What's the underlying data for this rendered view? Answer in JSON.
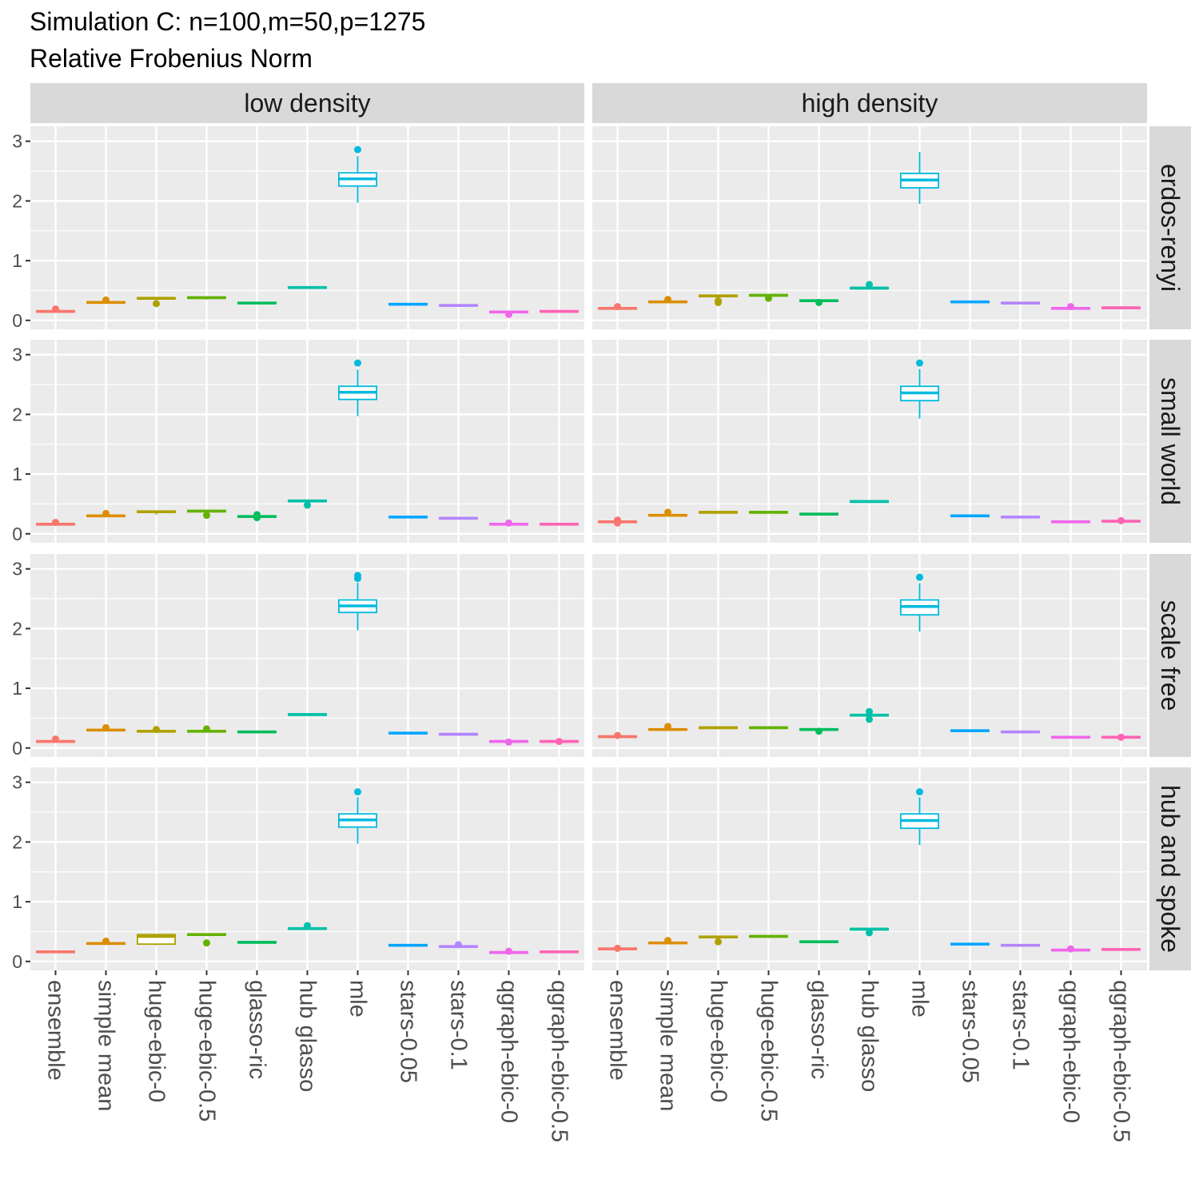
{
  "title": "Simulation C: n=100,m=50,p=1275",
  "subtitle": "Relative Frobenius Norm",
  "chart_data": {
    "type": "boxplot",
    "title": "Simulation C: n=100,m=50,p=1275",
    "subtitle": "Relative Frobenius Norm",
    "xlabel": "",
    "ylabel": "",
    "ylim": [
      -0.15,
      3.25
    ],
    "y_ticks": [
      "0",
      "1",
      "2",
      "3"
    ],
    "grid": true,
    "legend": "none",
    "categories": [
      "ensemble",
      "simple mean",
      "huge-ebic-0",
      "huge-ebic-0.5",
      "glasso-ric",
      "hub glasso",
      "mle",
      "stars-0.05",
      "stars-0.1",
      "qgraph-ebic-0",
      "qgraph-ebic-0.5"
    ],
    "colors": [
      "#F8766D",
      "#D89000",
      "#A3A500",
      "#39B600",
      "#00BF7D",
      "#00BFC4",
      "#00B0F6",
      "#9590FF",
      "#E76BF3",
      "#FF62BC",
      "#FF62BC"
    ],
    "category_colors": [
      "#F8766D",
      "#DB8E00",
      "#AEA200",
      "#64B200",
      "#00BD5C",
      "#00C1A7",
      "#00BADE",
      "#00A6FF",
      "#B385FF",
      "#EF67EB",
      "#FF63B6"
    ],
    "facet_cols": [
      "low density",
      "high density"
    ],
    "facet_rows": [
      "erdos-renyi",
      "small world",
      "scale free",
      "hub and spoke"
    ],
    "panels": [
      {
        "row": "erdos-renyi",
        "col": "low density",
        "boxes": [
          {
            "q1": 0.14,
            "med": 0.15,
            "q3": 0.16,
            "lo": 0.13,
            "hi": 0.17,
            "out": [
              0.19
            ]
          },
          {
            "q1": 0.29,
            "med": 0.3,
            "q3": 0.31,
            "lo": 0.28,
            "hi": 0.32,
            "out": [
              0.34
            ]
          },
          {
            "q1": 0.36,
            "med": 0.37,
            "q3": 0.38,
            "lo": 0.34,
            "hi": 0.39,
            "out": [
              0.28
            ]
          },
          {
            "q1": 0.37,
            "med": 0.38,
            "q3": 0.39,
            "lo": 0.35,
            "hi": 0.4,
            "out": []
          },
          {
            "q1": 0.28,
            "med": 0.29,
            "q3": 0.3,
            "lo": 0.27,
            "hi": 0.31,
            "out": []
          },
          {
            "q1": 0.54,
            "med": 0.55,
            "q3": 0.56,
            "lo": 0.53,
            "hi": 0.57,
            "out": []
          },
          {
            "q1": 2.25,
            "med": 2.37,
            "q3": 2.47,
            "lo": 1.97,
            "hi": 2.75,
            "out": [
              2.86
            ]
          },
          {
            "q1": 0.26,
            "med": 0.27,
            "q3": 0.28,
            "lo": 0.25,
            "hi": 0.29,
            "out": []
          },
          {
            "q1": 0.24,
            "med": 0.25,
            "q3": 0.26,
            "lo": 0.23,
            "hi": 0.27,
            "out": []
          },
          {
            "q1": 0.13,
            "med": 0.14,
            "q3": 0.15,
            "lo": 0.12,
            "hi": 0.16,
            "out": [
              0.1
            ]
          },
          {
            "q1": 0.14,
            "med": 0.15,
            "q3": 0.16,
            "lo": 0.13,
            "hi": 0.17,
            "out": []
          }
        ]
      },
      {
        "row": "erdos-renyi",
        "col": "high density",
        "boxes": [
          {
            "q1": 0.19,
            "med": 0.2,
            "q3": 0.21,
            "lo": 0.18,
            "hi": 0.22,
            "out": [
              0.23
            ]
          },
          {
            "q1": 0.3,
            "med": 0.31,
            "q3": 0.32,
            "lo": 0.29,
            "hi": 0.33,
            "out": [
              0.35
            ]
          },
          {
            "q1": 0.4,
            "med": 0.41,
            "q3": 0.42,
            "lo": 0.38,
            "hi": 0.43,
            "out": [
              0.33,
              0.3
            ]
          },
          {
            "q1": 0.41,
            "med": 0.42,
            "q3": 0.43,
            "lo": 0.39,
            "hi": 0.44,
            "out": [
              0.37
            ]
          },
          {
            "q1": 0.32,
            "med": 0.33,
            "q3": 0.34,
            "lo": 0.31,
            "hi": 0.35,
            "out": [
              0.3
            ]
          },
          {
            "q1": 0.53,
            "med": 0.54,
            "q3": 0.55,
            "lo": 0.52,
            "hi": 0.56,
            "out": [
              0.6
            ]
          },
          {
            "q1": 2.22,
            "med": 2.35,
            "q3": 2.46,
            "lo": 1.95,
            "hi": 2.82,
            "out": []
          },
          {
            "q1": 0.3,
            "med": 0.31,
            "q3": 0.32,
            "lo": 0.29,
            "hi": 0.33,
            "out": []
          },
          {
            "q1": 0.28,
            "med": 0.29,
            "q3": 0.3,
            "lo": 0.27,
            "hi": 0.31,
            "out": []
          },
          {
            "q1": 0.19,
            "med": 0.2,
            "q3": 0.21,
            "lo": 0.18,
            "hi": 0.22,
            "out": [
              0.23
            ]
          },
          {
            "q1": 0.2,
            "med": 0.21,
            "q3": 0.22,
            "lo": 0.19,
            "hi": 0.23,
            "out": []
          }
        ]
      },
      {
        "row": "small world",
        "col": "low density",
        "boxes": [
          {
            "q1": 0.15,
            "med": 0.16,
            "q3": 0.17,
            "lo": 0.14,
            "hi": 0.18,
            "out": [
              0.19
            ]
          },
          {
            "q1": 0.29,
            "med": 0.3,
            "q3": 0.31,
            "lo": 0.28,
            "hi": 0.32,
            "out": [
              0.34
            ]
          },
          {
            "q1": 0.36,
            "med": 0.37,
            "q3": 0.38,
            "lo": 0.32,
            "hi": 0.39,
            "out": []
          },
          {
            "q1": 0.37,
            "med": 0.38,
            "q3": 0.39,
            "lo": 0.35,
            "hi": 0.4,
            "out": [
              0.31
            ]
          },
          {
            "q1": 0.28,
            "med": 0.29,
            "q3": 0.3,
            "lo": 0.27,
            "hi": 0.31,
            "out": [
              0.32,
              0.27
            ]
          },
          {
            "q1": 0.54,
            "med": 0.55,
            "q3": 0.56,
            "lo": 0.53,
            "hi": 0.57,
            "out": [
              0.48
            ]
          },
          {
            "q1": 2.25,
            "med": 2.37,
            "q3": 2.47,
            "lo": 1.97,
            "hi": 2.75,
            "out": [
              2.86
            ]
          },
          {
            "q1": 0.27,
            "med": 0.28,
            "q3": 0.29,
            "lo": 0.26,
            "hi": 0.3,
            "out": []
          },
          {
            "q1": 0.25,
            "med": 0.26,
            "q3": 0.27,
            "lo": 0.24,
            "hi": 0.28,
            "out": []
          },
          {
            "q1": 0.15,
            "med": 0.16,
            "q3": 0.17,
            "lo": 0.14,
            "hi": 0.18,
            "out": [
              0.18
            ]
          },
          {
            "q1": 0.15,
            "med": 0.16,
            "q3": 0.17,
            "lo": 0.14,
            "hi": 0.18,
            "out": []
          }
        ]
      },
      {
        "row": "small world",
        "col": "high density",
        "boxes": [
          {
            "q1": 0.19,
            "med": 0.2,
            "q3": 0.21,
            "lo": 0.17,
            "hi": 0.22,
            "out": [
              0.23,
              0.18
            ]
          },
          {
            "q1": 0.3,
            "med": 0.31,
            "q3": 0.32,
            "lo": 0.29,
            "hi": 0.33,
            "out": [
              0.36
            ]
          },
          {
            "q1": 0.35,
            "med": 0.36,
            "q3": 0.37,
            "lo": 0.34,
            "hi": 0.38,
            "out": []
          },
          {
            "q1": 0.35,
            "med": 0.36,
            "q3": 0.37,
            "lo": 0.34,
            "hi": 0.38,
            "out": []
          },
          {
            "q1": 0.32,
            "med": 0.33,
            "q3": 0.34,
            "lo": 0.31,
            "hi": 0.35,
            "out": []
          },
          {
            "q1": 0.53,
            "med": 0.54,
            "q3": 0.55,
            "lo": 0.52,
            "hi": 0.56,
            "out": []
          },
          {
            "q1": 2.23,
            "med": 2.36,
            "q3": 2.47,
            "lo": 1.93,
            "hi": 2.76,
            "out": [
              2.86
            ]
          },
          {
            "q1": 0.29,
            "med": 0.3,
            "q3": 0.31,
            "lo": 0.28,
            "hi": 0.32,
            "out": []
          },
          {
            "q1": 0.27,
            "med": 0.28,
            "q3": 0.29,
            "lo": 0.26,
            "hi": 0.3,
            "out": []
          },
          {
            "q1": 0.19,
            "med": 0.2,
            "q3": 0.21,
            "lo": 0.18,
            "hi": 0.22,
            "out": []
          },
          {
            "q1": 0.2,
            "med": 0.21,
            "q3": 0.22,
            "lo": 0.19,
            "hi": 0.23,
            "out": [
              0.22
            ]
          }
        ]
      },
      {
        "row": "scale free",
        "col": "low density",
        "boxes": [
          {
            "q1": 0.1,
            "med": 0.11,
            "q3": 0.12,
            "lo": 0.09,
            "hi": 0.13,
            "out": [
              0.15
            ]
          },
          {
            "q1": 0.29,
            "med": 0.3,
            "q3": 0.31,
            "lo": 0.28,
            "hi": 0.32,
            "out": [
              0.34
            ]
          },
          {
            "q1": 0.27,
            "med": 0.28,
            "q3": 0.29,
            "lo": 0.26,
            "hi": 0.3,
            "out": [
              0.31
            ]
          },
          {
            "q1": 0.27,
            "med": 0.28,
            "q3": 0.29,
            "lo": 0.26,
            "hi": 0.3,
            "out": [
              0.32
            ]
          },
          {
            "q1": 0.26,
            "med": 0.27,
            "q3": 0.28,
            "lo": 0.25,
            "hi": 0.29,
            "out": []
          },
          {
            "q1": 0.55,
            "med": 0.56,
            "q3": 0.57,
            "lo": 0.54,
            "hi": 0.58,
            "out": []
          },
          {
            "q1": 2.27,
            "med": 2.38,
            "q3": 2.48,
            "lo": 1.97,
            "hi": 2.77,
            "out": [
              2.84,
              2.89
            ]
          },
          {
            "q1": 0.24,
            "med": 0.25,
            "q3": 0.26,
            "lo": 0.23,
            "hi": 0.27,
            "out": []
          },
          {
            "q1": 0.22,
            "med": 0.23,
            "q3": 0.24,
            "lo": 0.21,
            "hi": 0.25,
            "out": []
          },
          {
            "q1": 0.1,
            "med": 0.11,
            "q3": 0.12,
            "lo": 0.09,
            "hi": 0.13,
            "out": [
              0.1
            ]
          },
          {
            "q1": 0.1,
            "med": 0.11,
            "q3": 0.12,
            "lo": 0.09,
            "hi": 0.13,
            "out": [
              0.11
            ]
          }
        ]
      },
      {
        "row": "scale free",
        "col": "high density",
        "boxes": [
          {
            "q1": 0.18,
            "med": 0.19,
            "q3": 0.2,
            "lo": 0.17,
            "hi": 0.21,
            "out": [
              0.21
            ]
          },
          {
            "q1": 0.3,
            "med": 0.31,
            "q3": 0.32,
            "lo": 0.29,
            "hi": 0.33,
            "out": [
              0.36
            ]
          },
          {
            "q1": 0.33,
            "med": 0.34,
            "q3": 0.35,
            "lo": 0.32,
            "hi": 0.36,
            "out": []
          },
          {
            "q1": 0.33,
            "med": 0.34,
            "q3": 0.35,
            "lo": 0.32,
            "hi": 0.36,
            "out": []
          },
          {
            "q1": 0.3,
            "med": 0.31,
            "q3": 0.32,
            "lo": 0.29,
            "hi": 0.33,
            "out": [
              0.28
            ]
          },
          {
            "q1": 0.54,
            "med": 0.55,
            "q3": 0.56,
            "lo": 0.53,
            "hi": 0.57,
            "out": [
              0.61,
              0.48
            ]
          },
          {
            "q1": 2.23,
            "med": 2.37,
            "q3": 2.48,
            "lo": 1.95,
            "hi": 2.76,
            "out": [
              2.86
            ]
          },
          {
            "q1": 0.28,
            "med": 0.29,
            "q3": 0.3,
            "lo": 0.27,
            "hi": 0.31,
            "out": []
          },
          {
            "q1": 0.26,
            "med": 0.27,
            "q3": 0.28,
            "lo": 0.25,
            "hi": 0.29,
            "out": []
          },
          {
            "q1": 0.17,
            "med": 0.18,
            "q3": 0.19,
            "lo": 0.16,
            "hi": 0.2,
            "out": []
          },
          {
            "q1": 0.17,
            "med": 0.18,
            "q3": 0.19,
            "lo": 0.16,
            "hi": 0.2,
            "out": [
              0.18
            ]
          }
        ]
      },
      {
        "row": "hub and spoke",
        "col": "low density",
        "boxes": [
          {
            "q1": 0.15,
            "med": 0.16,
            "q3": 0.17,
            "lo": 0.14,
            "hi": 0.18,
            "out": []
          },
          {
            "q1": 0.29,
            "med": 0.3,
            "q3": 0.31,
            "lo": 0.28,
            "hi": 0.32,
            "out": [
              0.34
            ]
          },
          {
            "q1": 0.29,
            "med": 0.42,
            "q3": 0.45,
            "lo": 0.27,
            "hi": 0.46,
            "out": []
          },
          {
            "q1": 0.44,
            "med": 0.45,
            "q3": 0.46,
            "lo": 0.43,
            "hi": 0.47,
            "out": [
              0.31
            ]
          },
          {
            "q1": 0.31,
            "med": 0.32,
            "q3": 0.33,
            "lo": 0.3,
            "hi": 0.34,
            "out": []
          },
          {
            "q1": 0.54,
            "med": 0.55,
            "q3": 0.56,
            "lo": 0.53,
            "hi": 0.57,
            "out": [
              0.6
            ]
          },
          {
            "q1": 2.25,
            "med": 2.37,
            "q3": 2.47,
            "lo": 1.97,
            "hi": 2.75,
            "out": [
              2.84
            ]
          },
          {
            "q1": 0.26,
            "med": 0.27,
            "q3": 0.28,
            "lo": 0.25,
            "hi": 0.29,
            "out": []
          },
          {
            "q1": 0.24,
            "med": 0.25,
            "q3": 0.26,
            "lo": 0.23,
            "hi": 0.27,
            "out": [
              0.28
            ]
          },
          {
            "q1": 0.14,
            "med": 0.15,
            "q3": 0.16,
            "lo": 0.13,
            "hi": 0.17,
            "out": [
              0.17
            ]
          },
          {
            "q1": 0.15,
            "med": 0.16,
            "q3": 0.17,
            "lo": 0.14,
            "hi": 0.18,
            "out": []
          }
        ]
      },
      {
        "row": "hub and spoke",
        "col": "high density",
        "boxes": [
          {
            "q1": 0.2,
            "med": 0.21,
            "q3": 0.22,
            "lo": 0.19,
            "hi": 0.23,
            "out": [
              0.22
            ]
          },
          {
            "q1": 0.3,
            "med": 0.31,
            "q3": 0.32,
            "lo": 0.29,
            "hi": 0.33,
            "out": [
              0.35
            ]
          },
          {
            "q1": 0.4,
            "med": 0.41,
            "q3": 0.42,
            "lo": 0.38,
            "hi": 0.43,
            "out": [
              0.33
            ]
          },
          {
            "q1": 0.41,
            "med": 0.42,
            "q3": 0.43,
            "lo": 0.39,
            "hi": 0.44,
            "out": []
          },
          {
            "q1": 0.32,
            "med": 0.33,
            "q3": 0.34,
            "lo": 0.31,
            "hi": 0.35,
            "out": []
          },
          {
            "q1": 0.53,
            "med": 0.54,
            "q3": 0.55,
            "lo": 0.52,
            "hi": 0.56,
            "out": [
              0.48
            ]
          },
          {
            "q1": 2.23,
            "med": 2.36,
            "q3": 2.47,
            "lo": 1.95,
            "hi": 2.75,
            "out": [
              2.84
            ]
          },
          {
            "q1": 0.28,
            "med": 0.29,
            "q3": 0.3,
            "lo": 0.27,
            "hi": 0.31,
            "out": []
          },
          {
            "q1": 0.26,
            "med": 0.27,
            "q3": 0.28,
            "lo": 0.25,
            "hi": 0.29,
            "out": []
          },
          {
            "q1": 0.18,
            "med": 0.19,
            "q3": 0.2,
            "lo": 0.17,
            "hi": 0.21,
            "out": [
              0.21
            ]
          },
          {
            "q1": 0.19,
            "med": 0.2,
            "q3": 0.21,
            "lo": 0.18,
            "hi": 0.22,
            "out": []
          }
        ]
      }
    ]
  }
}
